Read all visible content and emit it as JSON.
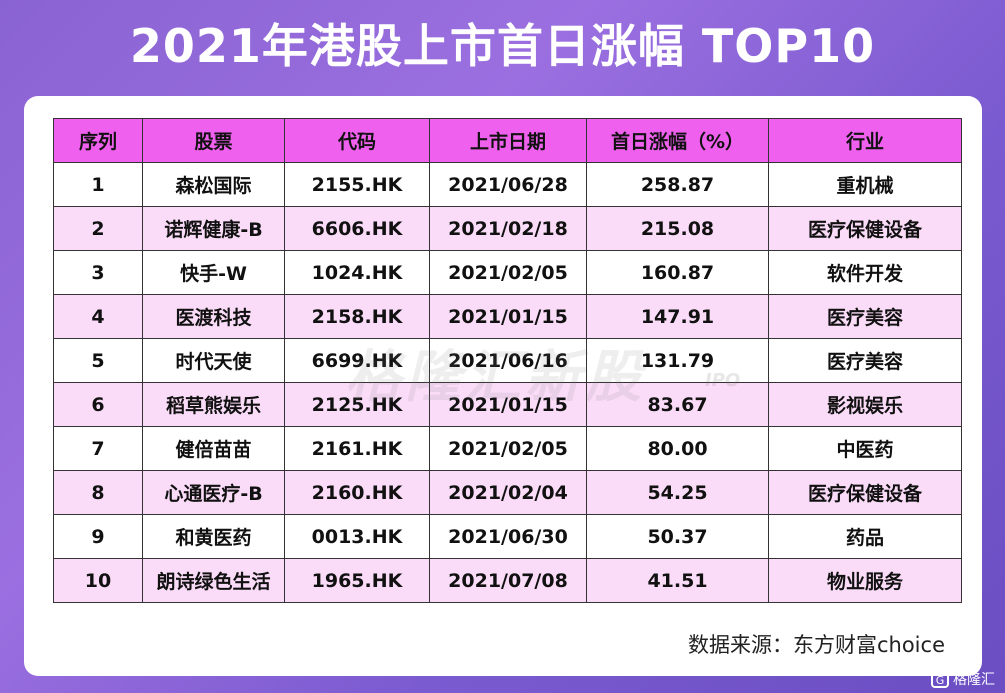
{
  "title": "2021年港股上市首日涨幅 TOP10",
  "source": "数据来源：东方财富choice",
  "watermark": "格隆汇新股",
  "watermark_sub": "IPO",
  "brand": {
    "icon_name": "gelonghui-logo-icon",
    "text": "格隆汇"
  },
  "colors": {
    "header_bg": "#f060ee",
    "alt_row_bg": "#fbdcf8",
    "background": "#8a63d2"
  },
  "chart_data": {
    "type": "table",
    "title": "2021年港股上市首日涨幅 TOP10",
    "columns": [
      "序列",
      "股票",
      "代码",
      "上市日期",
      "首日涨幅（%）",
      "行业"
    ],
    "rows": [
      [
        "1",
        "森松国际",
        "2155.HK",
        "2021/06/28",
        "258.87",
        "重机械"
      ],
      [
        "2",
        "诺辉健康-B",
        "6606.HK",
        "2021/02/18",
        "215.08",
        "医疗保健设备"
      ],
      [
        "3",
        "快手-W",
        "1024.HK",
        "2021/02/05",
        "160.87",
        "软件开发"
      ],
      [
        "4",
        "医渡科技",
        "2158.HK",
        "2021/01/15",
        "147.91",
        "医疗美容"
      ],
      [
        "5",
        "时代天使",
        "6699.HK",
        "2021/06/16",
        "131.79",
        "医疗美容"
      ],
      [
        "6",
        "稻草熊娱乐",
        "2125.HK",
        "2021/01/15",
        "83.67",
        "影视娱乐"
      ],
      [
        "7",
        "健倍苗苗",
        "2161.HK",
        "2021/02/05",
        "80.00",
        "中医药"
      ],
      [
        "8",
        "心通医疗-B",
        "2160.HK",
        "2021/02/04",
        "54.25",
        "医疗保健设备"
      ],
      [
        "9",
        "和黄医药",
        "0013.HK",
        "2021/06/30",
        "50.37",
        "药品"
      ],
      [
        "10",
        "朗诗绿色生活",
        "1965.HK",
        "2021/07/08",
        "41.51",
        "物业服务"
      ]
    ]
  }
}
